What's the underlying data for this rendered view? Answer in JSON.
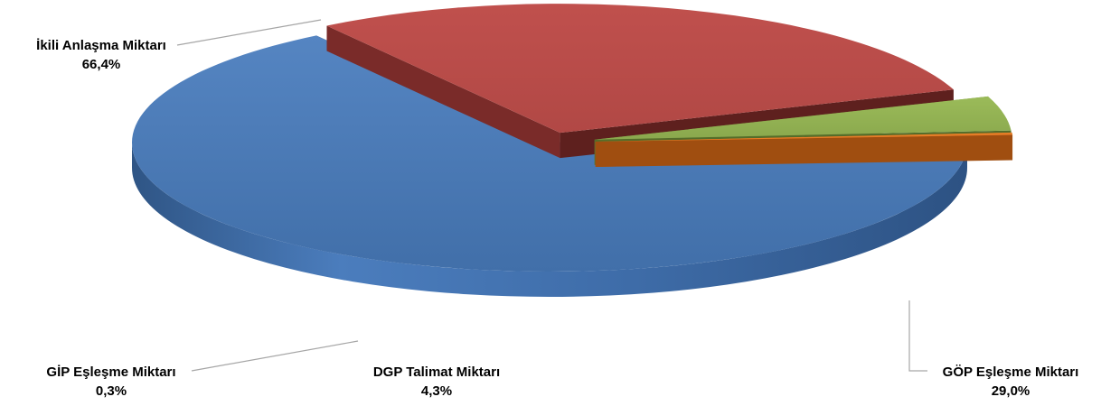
{
  "chart_data": {
    "type": "pie",
    "style": "3d-exploded",
    "legend": "none",
    "slices": [
      {
        "name": "İkili Anlaşma Miktarı",
        "value": 66.4,
        "label": "66,4%",
        "color": "#4a7ab5"
      },
      {
        "name": "GÖP Eşleşme Miktarı",
        "value": 29.0,
        "label": "29,0%",
        "color": "#b94e4b"
      },
      {
        "name": "DGP Talimat Miktarı",
        "value": 4.3,
        "label": "4,3%",
        "color": "#93b154"
      },
      {
        "name": "GİP Eşleşme Miktarı",
        "value": 0.3,
        "label": "0,3%",
        "color": "#e1741f"
      }
    ]
  }
}
